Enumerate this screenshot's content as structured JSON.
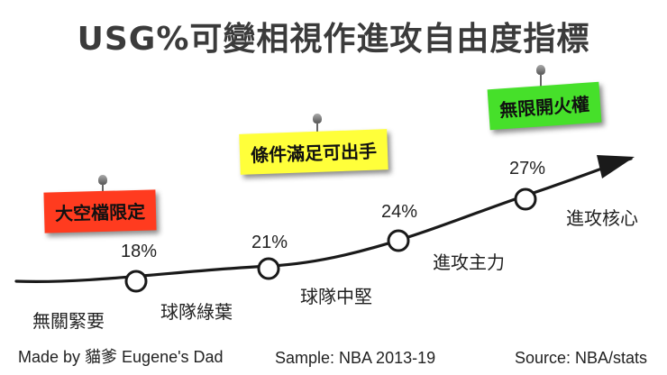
{
  "title": "USG%可變相視作進攻自由度指標",
  "milestones": [
    {
      "pct": "18%",
      "stage": "球隊綠葉"
    },
    {
      "pct": "21%",
      "stage": "球隊中堅"
    },
    {
      "pct": "24%",
      "stage": "進攻主力"
    },
    {
      "pct": "27%",
      "stage": "進攻核心"
    }
  ],
  "start_stage": "無關緊要",
  "notes": [
    {
      "text": "大空檔限定",
      "color": "#ff3b1f"
    },
    {
      "text": "條件滿足可出手",
      "color": "#ffff3a"
    },
    {
      "text": "無限開火權",
      "color": "#46e02a"
    }
  ],
  "footer": {
    "credit": "Made by 貓爹 Eugene's Dad",
    "sample": "Sample: NBA 2013-19",
    "source": "Source: NBA/stats"
  }
}
